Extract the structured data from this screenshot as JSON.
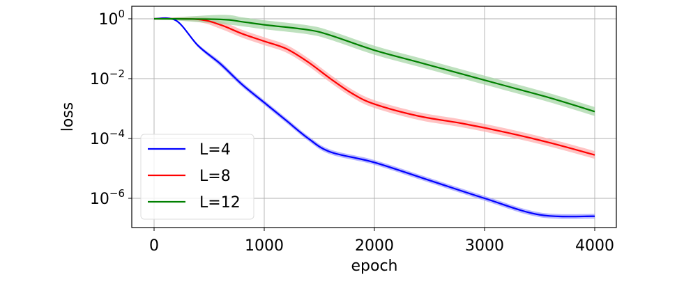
{
  "chart_data": {
    "type": "line",
    "title": "",
    "xlabel": "epoch",
    "ylabel": "loss",
    "xlim": [
      -200,
      4200
    ],
    "ylim_log10": [
      -7.0,
      0.4
    ],
    "yscale": "log",
    "grid": true,
    "legend_position": "lower left",
    "x_ticks": [
      0,
      1000,
      2000,
      3000,
      4000
    ],
    "x_tick_labels": [
      "0",
      "1000",
      "2000",
      "3000",
      "4000"
    ],
    "y_ticks_log10": [
      0,
      -2,
      -4,
      -6
    ],
    "y_tick_labels": [
      {
        "base": "10",
        "exp": "0"
      },
      {
        "base": "10",
        "exp": "−2"
      },
      {
        "base": "10",
        "exp": "−4"
      },
      {
        "base": "10",
        "exp": "−6"
      }
    ],
    "series": [
      {
        "name": "L=4",
        "color": "#0000ff",
        "band_color": "#9999ff",
        "x": [
          0,
          200,
          400,
          600,
          800,
          1000,
          1200,
          1400,
          1600,
          2000,
          2500,
          3000,
          3500,
          4000
        ],
        "log10_loss": [
          0,
          -0.06,
          -0.9,
          -1.5,
          -2.2,
          -2.8,
          -3.4,
          -4.0,
          -4.45,
          -4.8,
          -5.4,
          -6.0,
          -6.55,
          -6.6
        ],
        "band_halfwidth_log10": 0.08
      },
      {
        "name": "L=8",
        "color": "#ff0000",
        "band_color": "#ffaaaa",
        "x": [
          0,
          400,
          600,
          800,
          1000,
          1200,
          1400,
          1600,
          1800,
          2000,
          2400,
          2800,
          3200,
          3600,
          4000
        ],
        "log10_loss": [
          0,
          -0.02,
          -0.2,
          -0.5,
          -0.75,
          -1.0,
          -1.45,
          -2.0,
          -2.5,
          -2.85,
          -3.25,
          -3.5,
          -3.8,
          -4.15,
          -4.55
        ],
        "band_halfwidth_log10": 0.13
      },
      {
        "name": "L=12",
        "color": "#008000",
        "band_color": "#a3d4a3",
        "x": [
          0,
          600,
          800,
          1000,
          1400,
          1600,
          2000,
          2400,
          2800,
          3200,
          3600,
          4000
        ],
        "log10_loss": [
          0,
          -0.02,
          -0.1,
          -0.2,
          -0.37,
          -0.55,
          -1.05,
          -1.45,
          -1.85,
          -2.25,
          -2.65,
          -3.1
        ],
        "band_halfwidth_log10": 0.15
      }
    ]
  }
}
